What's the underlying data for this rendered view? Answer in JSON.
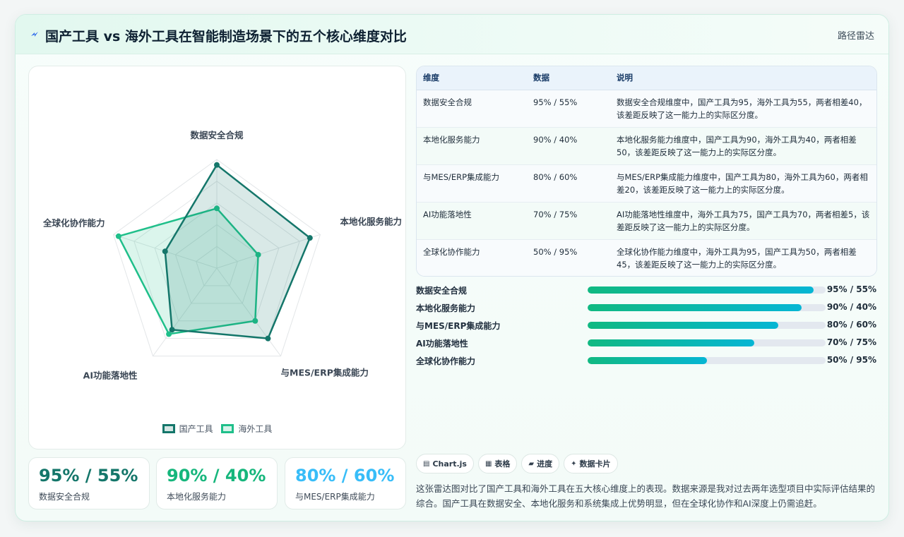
{
  "header": {
    "title": "国产工具 vs 海外工具在智能制造场景下的五个核心维度对比",
    "badge": "路径雷达",
    "icon": "bolt-icon"
  },
  "colors": {
    "domestic": "#14766a",
    "overseas": "#1fbf8a",
    "kpi1": "#14766a",
    "kpi2": "#16b67c",
    "kpi3": "#38bdf8"
  },
  "chart_data": {
    "type": "radar",
    "categories": [
      "数据安全合规",
      "本地化服务能力",
      "与MES/ERP集成能力",
      "AI功能落地性",
      "全球化协作能力"
    ],
    "series": [
      {
        "name": "国产工具",
        "values": [
          95,
          90,
          80,
          70,
          50
        ]
      },
      {
        "name": "海外工具",
        "values": [
          55,
          40,
          60,
          75,
          95
        ]
      }
    ],
    "rlim": [
      0,
      100
    ],
    "grid": true,
    "legend": "bottom"
  },
  "legend": {
    "domestic": "国产工具",
    "overseas": "海外工具"
  },
  "kpis": [
    {
      "value": "95% / 55%",
      "label": "数据安全合规"
    },
    {
      "value": "90% / 40%",
      "label": "本地化服务能力"
    },
    {
      "value": "80% / 60%",
      "label": "与MES/ERP集成能力"
    }
  ],
  "table": {
    "headers": [
      "维度",
      "数据",
      "说明"
    ],
    "rows": [
      {
        "dim": "数据安全合规",
        "data": "95% / 55%",
        "desc": "数据安全合规维度中，国产工具为95，海外工具为55，两者相差40，该差距反映了这一能力上的实际区分度。"
      },
      {
        "dim": "本地化服务能力",
        "data": "90% / 40%",
        "desc": "本地化服务能力维度中，国产工具为90，海外工具为40，两者相差50，该差距反映了这一能力上的实际区分度。"
      },
      {
        "dim": "与MES/ERP集成能力",
        "data": "80% / 60%",
        "desc": "与MES/ERP集成能力维度中，国产工具为80，海外工具为60，两者相差20，该差距反映了这一能力上的实际区分度。"
      },
      {
        "dim": "AI功能落地性",
        "data": "70% / 75%",
        "desc": "AI功能落地性维度中，海外工具为75，国产工具为70，两者相差5，该差距反映了这一能力上的实际区分度。"
      },
      {
        "dim": "全球化协作能力",
        "data": "50% / 95%",
        "desc": "全球化协作能力维度中，海外工具为95，国产工具为50，两者相差45，该差距反映了这一能力上的实际区分度。"
      }
    ]
  },
  "bars": [
    {
      "name": "数据安全合规",
      "fill": 95,
      "text": "95% / 55%"
    },
    {
      "name": "本地化服务能力",
      "fill": 90,
      "text": "90% / 40%"
    },
    {
      "name": "与MES/ERP集成能力",
      "fill": 80,
      "text": "80% / 60%"
    },
    {
      "name": "AI功能落地性",
      "fill": 70,
      "text": "70% / 75%"
    },
    {
      "name": "全球化协作能力",
      "fill": 50,
      "text": "50% / 95%"
    }
  ],
  "chips": [
    {
      "icon": "chart-icon",
      "glyph": "▤",
      "label": "Chart.js"
    },
    {
      "icon": "table-icon",
      "glyph": "▦",
      "label": "表格"
    },
    {
      "icon": "progress-icon",
      "glyph": "▰",
      "label": "进度"
    },
    {
      "icon": "card-icon",
      "glyph": "✦",
      "label": "数据卡片"
    }
  ],
  "description": "这张雷达图对比了国产工具和海外工具在五大核心维度上的表现。数据来源是我对过去两年选型项目中实际评估结果的综合。国产工具在数据安全、本地化服务和系统集成上优势明显，但在全球化协作和AI深度上仍需追赶。"
}
